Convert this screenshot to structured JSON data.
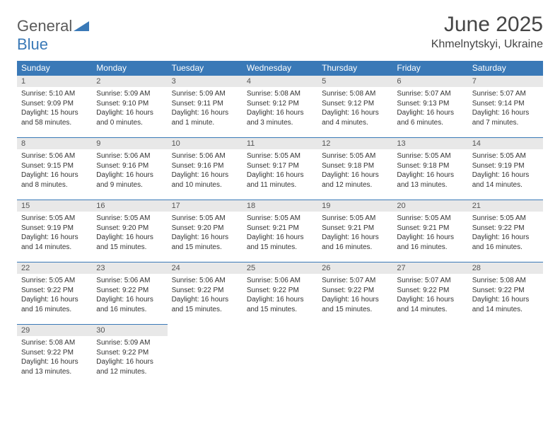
{
  "logo": {
    "part1": "General",
    "part2": "Blue"
  },
  "title": "June 2025",
  "location": "Khmelnytskyi, Ukraine",
  "colors": {
    "header_bg": "#3a79b7",
    "header_text": "#ffffff",
    "daynum_bg": "#e8e8e8",
    "text": "#333333",
    "logo_gray": "#5a5a5a",
    "logo_blue": "#3a79b7",
    "page_bg": "#ffffff"
  },
  "typography": {
    "title_fontsize": 30,
    "location_fontsize": 16,
    "header_fontsize": 12,
    "cell_fontsize": 10
  },
  "weekdays": [
    "Sunday",
    "Monday",
    "Tuesday",
    "Wednesday",
    "Thursday",
    "Friday",
    "Saturday"
  ],
  "grid": {
    "rows": 5,
    "cols": 7
  },
  "days": [
    {
      "n": "1",
      "sunrise": "5:10 AM",
      "sunset": "9:09 PM",
      "daylight": "15 hours and 58 minutes."
    },
    {
      "n": "2",
      "sunrise": "5:09 AM",
      "sunset": "9:10 PM",
      "daylight": "16 hours and 0 minutes."
    },
    {
      "n": "3",
      "sunrise": "5:09 AM",
      "sunset": "9:11 PM",
      "daylight": "16 hours and 1 minute."
    },
    {
      "n": "4",
      "sunrise": "5:08 AM",
      "sunset": "9:12 PM",
      "daylight": "16 hours and 3 minutes."
    },
    {
      "n": "5",
      "sunrise": "5:08 AM",
      "sunset": "9:12 PM",
      "daylight": "16 hours and 4 minutes."
    },
    {
      "n": "6",
      "sunrise": "5:07 AM",
      "sunset": "9:13 PM",
      "daylight": "16 hours and 6 minutes."
    },
    {
      "n": "7",
      "sunrise": "5:07 AM",
      "sunset": "9:14 PM",
      "daylight": "16 hours and 7 minutes."
    },
    {
      "n": "8",
      "sunrise": "5:06 AM",
      "sunset": "9:15 PM",
      "daylight": "16 hours and 8 minutes."
    },
    {
      "n": "9",
      "sunrise": "5:06 AM",
      "sunset": "9:16 PM",
      "daylight": "16 hours and 9 minutes."
    },
    {
      "n": "10",
      "sunrise": "5:06 AM",
      "sunset": "9:16 PM",
      "daylight": "16 hours and 10 minutes."
    },
    {
      "n": "11",
      "sunrise": "5:05 AM",
      "sunset": "9:17 PM",
      "daylight": "16 hours and 11 minutes."
    },
    {
      "n": "12",
      "sunrise": "5:05 AM",
      "sunset": "9:18 PM",
      "daylight": "16 hours and 12 minutes."
    },
    {
      "n": "13",
      "sunrise": "5:05 AM",
      "sunset": "9:18 PM",
      "daylight": "16 hours and 13 minutes."
    },
    {
      "n": "14",
      "sunrise": "5:05 AM",
      "sunset": "9:19 PM",
      "daylight": "16 hours and 14 minutes."
    },
    {
      "n": "15",
      "sunrise": "5:05 AM",
      "sunset": "9:19 PM",
      "daylight": "16 hours and 14 minutes."
    },
    {
      "n": "16",
      "sunrise": "5:05 AM",
      "sunset": "9:20 PM",
      "daylight": "16 hours and 15 minutes."
    },
    {
      "n": "17",
      "sunrise": "5:05 AM",
      "sunset": "9:20 PM",
      "daylight": "16 hours and 15 minutes."
    },
    {
      "n": "18",
      "sunrise": "5:05 AM",
      "sunset": "9:21 PM",
      "daylight": "16 hours and 15 minutes."
    },
    {
      "n": "19",
      "sunrise": "5:05 AM",
      "sunset": "9:21 PM",
      "daylight": "16 hours and 16 minutes."
    },
    {
      "n": "20",
      "sunrise": "5:05 AM",
      "sunset": "9:21 PM",
      "daylight": "16 hours and 16 minutes."
    },
    {
      "n": "21",
      "sunrise": "5:05 AM",
      "sunset": "9:22 PM",
      "daylight": "16 hours and 16 minutes."
    },
    {
      "n": "22",
      "sunrise": "5:05 AM",
      "sunset": "9:22 PM",
      "daylight": "16 hours and 16 minutes."
    },
    {
      "n": "23",
      "sunrise": "5:06 AM",
      "sunset": "9:22 PM",
      "daylight": "16 hours and 16 minutes."
    },
    {
      "n": "24",
      "sunrise": "5:06 AM",
      "sunset": "9:22 PM",
      "daylight": "16 hours and 15 minutes."
    },
    {
      "n": "25",
      "sunrise": "5:06 AM",
      "sunset": "9:22 PM",
      "daylight": "16 hours and 15 minutes."
    },
    {
      "n": "26",
      "sunrise": "5:07 AM",
      "sunset": "9:22 PM",
      "daylight": "16 hours and 15 minutes."
    },
    {
      "n": "27",
      "sunrise": "5:07 AM",
      "sunset": "9:22 PM",
      "daylight": "16 hours and 14 minutes."
    },
    {
      "n": "28",
      "sunrise": "5:08 AM",
      "sunset": "9:22 PM",
      "daylight": "16 hours and 14 minutes."
    },
    {
      "n": "29",
      "sunrise": "5:08 AM",
      "sunset": "9:22 PM",
      "daylight": "16 hours and 13 minutes."
    },
    {
      "n": "30",
      "sunrise": "5:09 AM",
      "sunset": "9:22 PM",
      "daylight": "16 hours and 12 minutes."
    }
  ],
  "labels": {
    "sunrise": "Sunrise:",
    "sunset": "Sunset:",
    "daylight": "Daylight:"
  }
}
